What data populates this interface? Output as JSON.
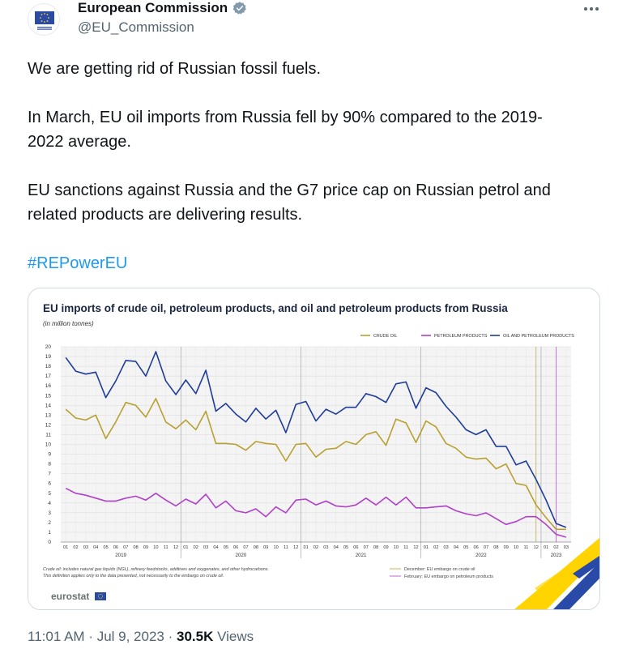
{
  "author": {
    "name": "European Commission",
    "handle": "@EU_Commission",
    "verified_icon": "verified-badge-icon",
    "more_icon": "more-options-icon"
  },
  "tweet": {
    "line1": "We are getting rid of Russian fossil fuels.",
    "line2a": "In March, EU oil imports from Russia fell by 90% compared to the 2019-",
    "line2b": "2022 average.",
    "line3a": "EU sanctions against Russia and the G7 price cap on Russian petrol and",
    "line3b": "related products are delivering results.",
    "hashtag": "#REPowerEU"
  },
  "meta": {
    "time": "11:01 AM",
    "date": "Jul 9, 2023",
    "views_count": "30.5K",
    "views_label": "Views"
  },
  "colors": {
    "crude": "#b8a030",
    "petroleum": "#b040c8",
    "total": "#1f3c9a",
    "hashtag": "#1d9bf0"
  },
  "chart_data": {
    "type": "line",
    "title": "EU imports of crude oil, petroleum products, and oil and petroleum products from Russia",
    "subtitle": "(in million tonnes)",
    "ylim": [
      0,
      20
    ],
    "yticks": [
      "0",
      "1",
      "2",
      "3",
      "4",
      "5",
      "6",
      "7",
      "8",
      "9",
      "10",
      "11",
      "12",
      "13",
      "14",
      "15",
      "16",
      "17",
      "18",
      "19",
      "20"
    ],
    "month_ticks": [
      "01",
      "02",
      "03",
      "04",
      "05",
      "06",
      "07",
      "08",
      "09",
      "10",
      "11",
      "12",
      "01",
      "02",
      "03",
      "04",
      "05",
      "06",
      "07",
      "08",
      "09",
      "10",
      "11",
      "12",
      "01",
      "02",
      "03",
      "04",
      "05",
      "06",
      "07",
      "08",
      "09",
      "10",
      "11",
      "12",
      "01",
      "02",
      "03",
      "04",
      "05",
      "06",
      "07",
      "08",
      "09",
      "10",
      "11",
      "12",
      "01",
      "02",
      "03"
    ],
    "year_labels": [
      "2019",
      "2020",
      "2021",
      "2022",
      "2023"
    ],
    "series": [
      {
        "name": "CRUDE OIL",
        "color": "#b8a030",
        "values": [
          13.6,
          12.7,
          12.5,
          13.0,
          10.6,
          12.3,
          14.3,
          14.0,
          12.8,
          14.7,
          12.3,
          11.6,
          12.5,
          11.5,
          13.4,
          10.1,
          10.1,
          10.0,
          9.4,
          10.3,
          10.1,
          10.0,
          8.3,
          10.0,
          10.1,
          8.7,
          9.5,
          9.6,
          10.3,
          10.0,
          11.0,
          11.3,
          9.9,
          12.6,
          12.2,
          10.2,
          12.4,
          11.8,
          10.1,
          9.6,
          8.7,
          8.5,
          8.6,
          7.5,
          8.0,
          6.0,
          5.8,
          3.8,
          2.5,
          1.3,
          1.3
        ]
      },
      {
        "name": "PETROLEUM PRODUCTS",
        "color": "#b040c8",
        "values": [
          5.5,
          5.0,
          4.8,
          4.5,
          4.2,
          4.2,
          4.5,
          4.7,
          4.3,
          5.0,
          4.3,
          3.7,
          4.4,
          3.9,
          4.9,
          3.5,
          4.2,
          3.2,
          3.0,
          3.4,
          2.6,
          3.6,
          3.0,
          4.3,
          4.4,
          3.8,
          4.2,
          3.7,
          3.6,
          3.8,
          4.5,
          3.8,
          4.6,
          3.8,
          4.6,
          3.5,
          3.5,
          3.6,
          3.7,
          3.2,
          2.9,
          2.7,
          3.0,
          2.4,
          1.8,
          2.1,
          2.6,
          2.6,
          1.8,
          0.8,
          0.5
        ]
      },
      {
        "name": "OIL AND PETROLEUM PRODUCTS",
        "color": "#1f3c9a",
        "values": [
          18.9,
          17.5,
          17.2,
          17.4,
          14.8,
          16.5,
          18.6,
          18.5,
          17.0,
          19.5,
          16.5,
          15.1,
          16.6,
          15.2,
          17.6,
          13.4,
          14.2,
          13.1,
          12.3,
          13.7,
          12.6,
          13.5,
          11.2,
          14.1,
          14.4,
          12.4,
          13.6,
          13.1,
          13.8,
          13.8,
          15.2,
          14.9,
          14.3,
          16.2,
          16.4,
          13.7,
          15.8,
          15.3,
          13.9,
          12.8,
          11.5,
          11.0,
          11.5,
          9.8,
          9.8,
          7.9,
          8.3,
          6.4,
          4.3,
          1.9,
          1.5
        ]
      }
    ],
    "notes": [
      "Crude oil: includes natural gas liquids (NGL), refinery feedstocks, additives and oxygenates, and other hydrocarbons.",
      "This definition applies only to the data presented, not necessarily to the embargo on crude oil."
    ],
    "events": [
      {
        "label": "December: EU embargo on crude oil",
        "color": "#b8a030"
      },
      {
        "label": "February: EU embargo on petroleum products",
        "color": "#b040c8"
      }
    ],
    "grid": true,
    "legend": "top-right",
    "source_logo": "eurostat"
  }
}
